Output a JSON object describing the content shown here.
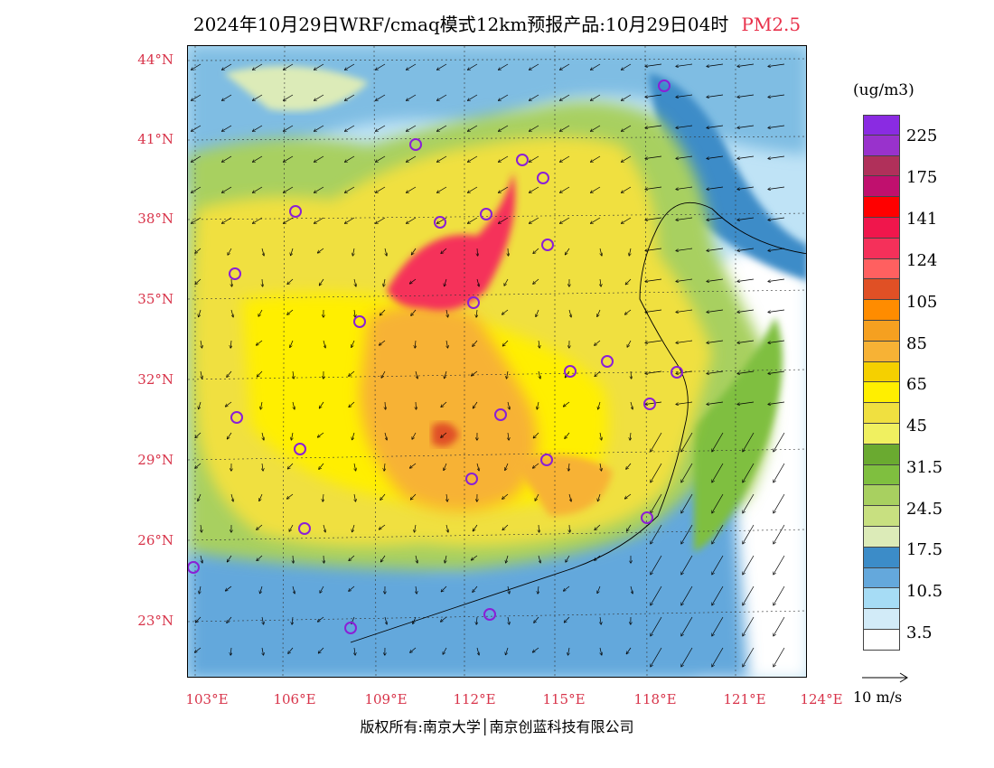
{
  "title": {
    "text": "2024年10月29日WRF/cmaq模式12km预报产品:10月29日04时",
    "pollutant": "PM2.5",
    "pollutant_color": "#e8304a"
  },
  "map": {
    "extent": {
      "lon_min": 103,
      "lon_max": 124,
      "lat_min": 21.5,
      "lat_max": 44
    },
    "lat_labels": [
      "44°N",
      "41°N",
      "38°N",
      "35°N",
      "32°N",
      "29°N",
      "26°N",
      "23°N"
    ],
    "lon_labels": [
      "103°E",
      "106°E",
      "109°E",
      "112°E",
      "115°E",
      "118°E",
      "121°E",
      "124°E"
    ],
    "city_marker_color": "#8a1fd6"
  },
  "colorbar": {
    "unit": "(ug/m3)",
    "colors": [
      "#8a2be2",
      "#9932cc",
      "#b0305a",
      "#c0106e",
      "#ff0000",
      "#f0164c",
      "#f5305a",
      "#ff6060",
      "#e05025",
      "#ff8c00",
      "#f5a020",
      "#f7b235",
      "#f5d000",
      "#ffef00",
      "#f0e040",
      "#f0f060",
      "#6aaa30",
      "#7fbf3f",
      "#a8d060",
      "#c8e080",
      "#dcebb8",
      "#3c8cc8",
      "#64a8dc",
      "#a6dcf5",
      "#d2ebf8",
      "#ffffff"
    ],
    "labels": [
      "225",
      "175",
      "141",
      "124",
      "105",
      "85",
      "65",
      "45",
      "31.5",
      "24.5",
      "17.5",
      "10.5",
      "3.5"
    ]
  },
  "vector_reference": {
    "label": "10 m/s"
  },
  "copyright": "版权所有:南京大学│南京创蓝科技有限公司"
}
